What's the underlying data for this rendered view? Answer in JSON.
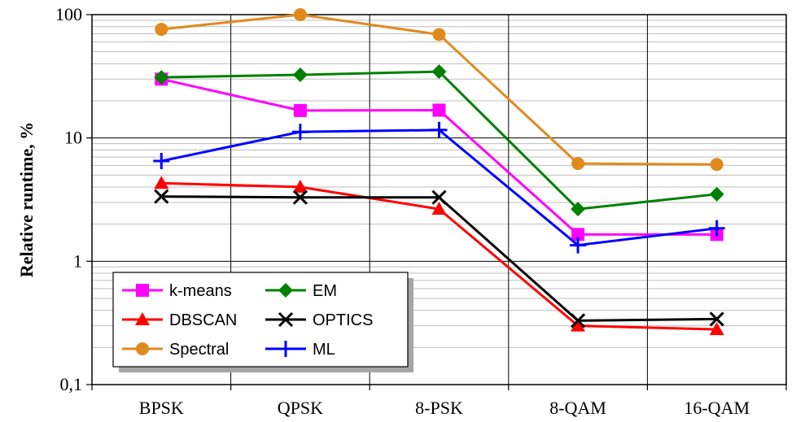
{
  "chart_data": {
    "type": "line",
    "title": "",
    "xlabel": "",
    "ylabel": "Relative runtime, %",
    "yscale": "log",
    "ylim": [
      0.1,
      100
    ],
    "y_ticks": [
      {
        "value": 100,
        "label": "100"
      },
      {
        "value": 10,
        "label": "10"
      },
      {
        "value": 1,
        "label": "1"
      },
      {
        "value": 0.1,
        "label": "0,1"
      }
    ],
    "categories": [
      "BPSK",
      "QPSK",
      "8-PSK",
      "8-QAM",
      "16-QAM"
    ],
    "grid": true,
    "legend": "bottom-left",
    "series": [
      {
        "name": "k-means",
        "color": "#ff00ff",
        "marker": "square",
        "values": [
          30,
          16.7,
          16.8,
          1.65,
          1.65
        ]
      },
      {
        "name": "EM",
        "color": "#008000",
        "marker": "diamond",
        "values": [
          31,
          32.5,
          34.5,
          2.65,
          3.5
        ]
      },
      {
        "name": "DBSCAN",
        "color": "#ff0000",
        "marker": "triangle",
        "values": [
          4.3,
          4.0,
          2.65,
          0.3,
          0.28
        ]
      },
      {
        "name": "OPTICS",
        "color": "#000000",
        "marker": "x",
        "values": [
          3.35,
          3.3,
          3.3,
          0.33,
          0.34
        ]
      },
      {
        "name": "Spectral",
        "color": "#e08a1e",
        "marker": "circle",
        "values": [
          76,
          100,
          69,
          6.2,
          6.1
        ]
      },
      {
        "name": "ML",
        "color": "#0000ff",
        "marker": "plus",
        "values": [
          6.5,
          11.2,
          11.6,
          1.35,
          1.85
        ]
      }
    ]
  }
}
